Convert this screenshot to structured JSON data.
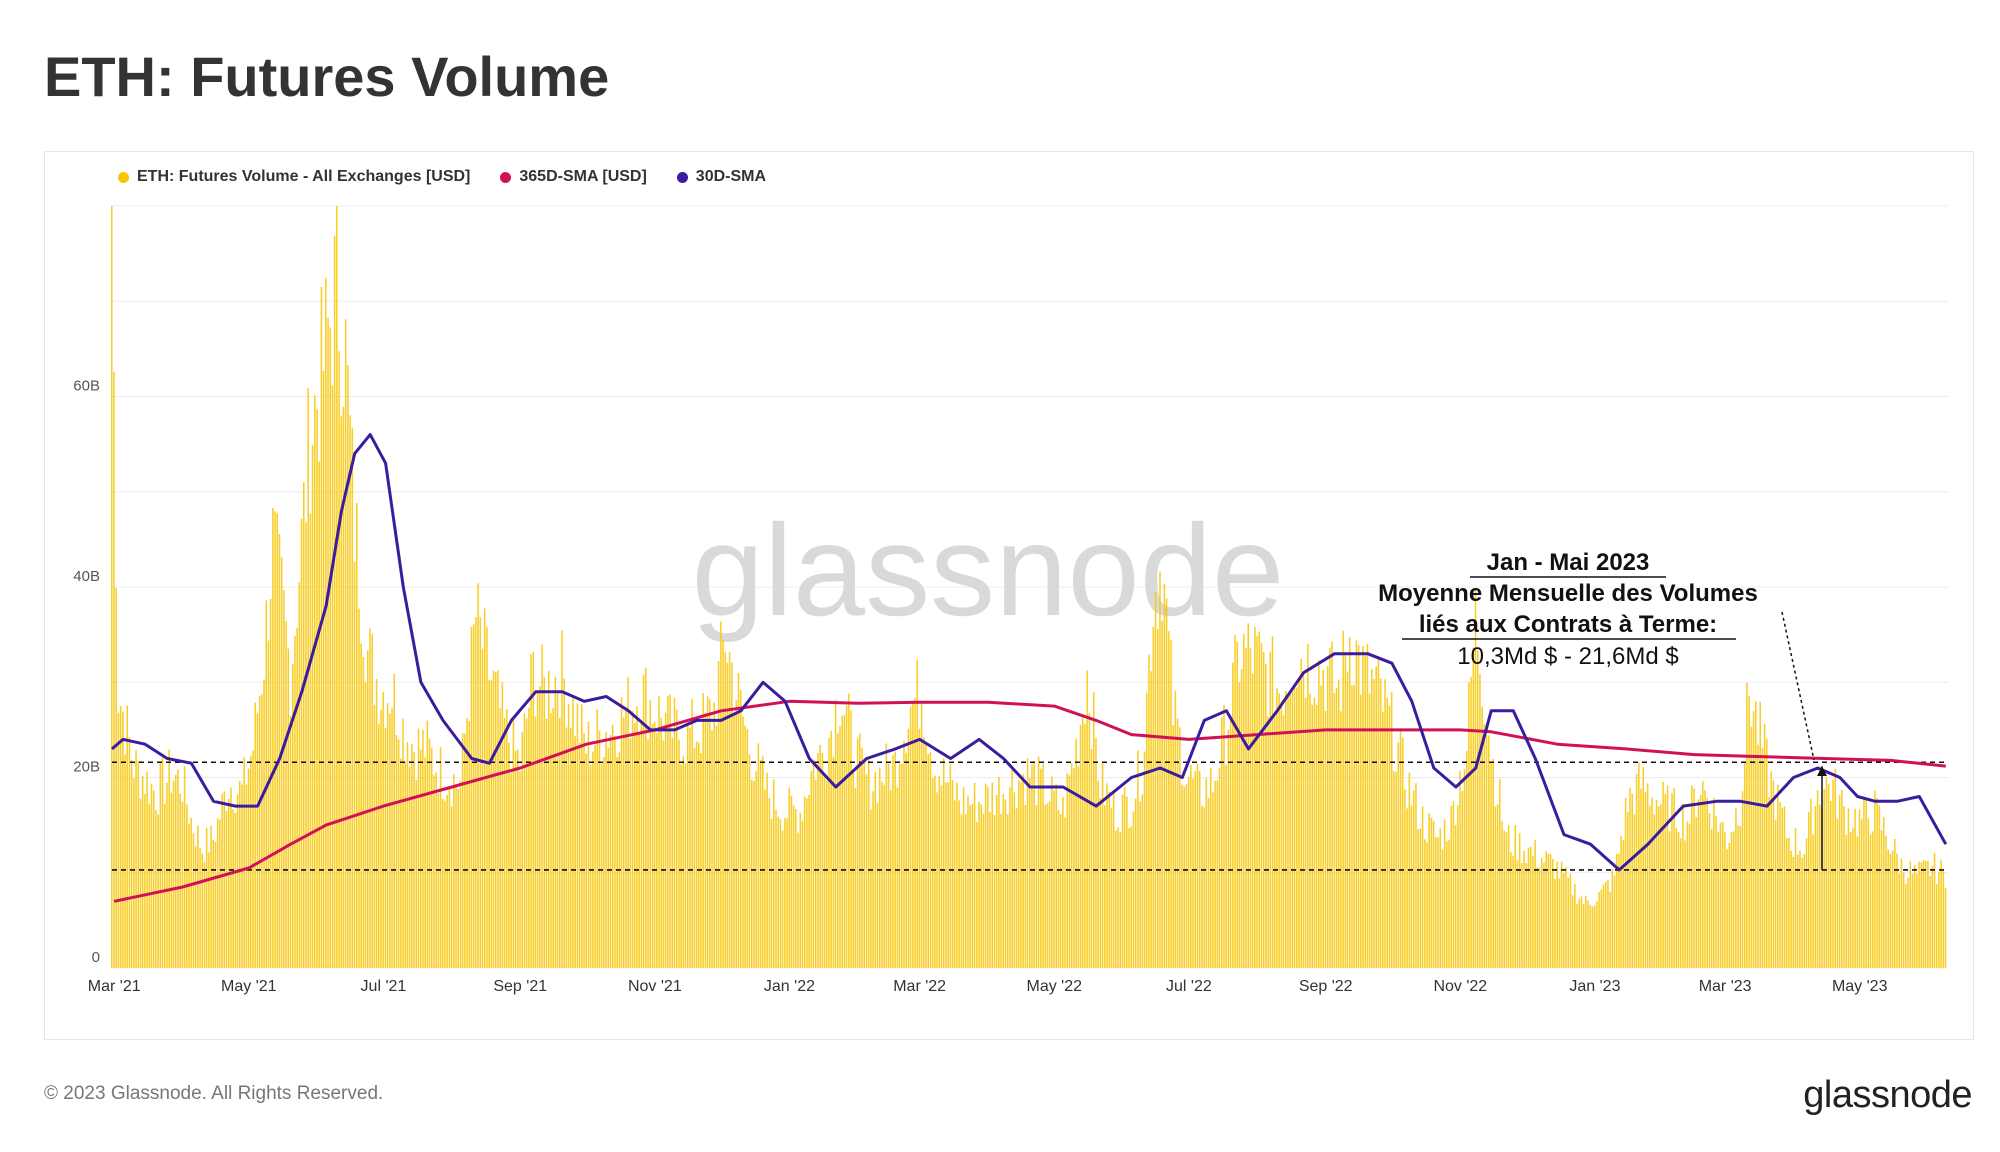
{
  "title": "ETH: Futures Volume",
  "legend": [
    {
      "label": "ETH: Futures Volume - All Exchanges [USD]",
      "color": "#f7c600"
    },
    {
      "label": "365D-SMA [USD]",
      "color": "#d0115a"
    },
    {
      "label": "30D-SMA",
      "color": "#3b1c9e"
    }
  ],
  "footer": {
    "copyright": "© 2023 Glassnode. All Rights Reserved.",
    "logo": "glassnode"
  },
  "watermark": "glassnode",
  "annotation": {
    "line1": "Jan - Mai 2023",
    "line2": "Moyenne Mensuelle des Volumes",
    "line3": "liés aux Contrats à Terme:",
    "line4": "10,3Md $ - 21,6Md $"
  },
  "chart_data": {
    "type": "bar",
    "x_range": [
      "2021-02-28",
      "2023-06-10"
    ],
    "ylim": [
      0,
      80
    ],
    "y_unit": "B",
    "yticks": [
      {
        "v": 0,
        "label": "0"
      },
      {
        "v": 20,
        "label": "20B"
      },
      {
        "v": 40,
        "label": "40B"
      },
      {
        "v": 60,
        "label": "60B"
      }
    ],
    "xticks": [
      {
        "date": "2021-03-01",
        "label": "Mar '21"
      },
      {
        "date": "2021-05-01",
        "label": "May '21"
      },
      {
        "date": "2021-07-01",
        "label": "Jul '21"
      },
      {
        "date": "2021-09-01",
        "label": "Sep '21"
      },
      {
        "date": "2021-11-01",
        "label": "Nov '21"
      },
      {
        "date": "2022-01-01",
        "label": "Jan '22"
      },
      {
        "date": "2022-03-01",
        "label": "Mar '22"
      },
      {
        "date": "2022-05-01",
        "label": "May '22"
      },
      {
        "date": "2022-07-01",
        "label": "Jul '22"
      },
      {
        "date": "2022-09-01",
        "label": "Sep '22"
      },
      {
        "date": "2022-11-01",
        "label": "Nov '22"
      },
      {
        "date": "2023-01-01",
        "label": "Jan '23"
      },
      {
        "date": "2023-03-01",
        "label": "Mar '23"
      },
      {
        "date": "2023-05-01",
        "label": "May '23"
      }
    ],
    "reference_lines": [
      21.6,
      10.3
    ],
    "series": [
      {
        "name": "ETH: Futures Volume - All Exchanges [USD]",
        "color": "#f7c600",
        "points": [
          [
            "2021-02-28",
            80
          ],
          [
            "2021-03-03",
            30
          ],
          [
            "2021-03-10",
            22
          ],
          [
            "2021-03-20",
            19
          ],
          [
            "2021-03-27",
            21
          ],
          [
            "2021-04-01",
            20
          ],
          [
            "2021-04-05",
            16
          ],
          [
            "2021-04-10",
            13
          ],
          [
            "2021-04-15",
            14
          ],
          [
            "2021-04-22",
            20
          ],
          [
            "2021-04-28",
            19
          ],
          [
            "2021-05-03",
            24
          ],
          [
            "2021-05-08",
            34
          ],
          [
            "2021-05-12",
            46
          ],
          [
            "2021-05-16",
            40
          ],
          [
            "2021-05-20",
            32
          ],
          [
            "2021-05-25",
            46
          ],
          [
            "2021-05-29",
            58
          ],
          [
            "2021-06-03",
            64
          ],
          [
            "2021-06-07",
            70
          ],
          [
            "2021-06-10",
            74
          ],
          [
            "2021-06-14",
            66
          ],
          [
            "2021-06-18",
            48
          ],
          [
            "2021-06-24",
            34
          ],
          [
            "2021-06-30",
            30
          ],
          [
            "2021-07-05",
            30
          ],
          [
            "2021-07-10",
            26
          ],
          [
            "2021-07-15",
            24
          ],
          [
            "2021-07-20",
            24
          ],
          [
            "2021-07-28",
            21
          ],
          [
            "2021-08-05",
            20
          ],
          [
            "2021-08-12",
            38
          ],
          [
            "2021-08-18",
            32
          ],
          [
            "2021-08-25",
            26
          ],
          [
            "2021-09-01",
            22
          ],
          [
            "2021-09-07",
            32
          ],
          [
            "2021-09-12",
            30
          ],
          [
            "2021-09-20",
            32
          ],
          [
            "2021-09-25",
            28
          ],
          [
            "2021-10-01",
            24
          ],
          [
            "2021-10-06",
            25
          ],
          [
            "2021-10-12",
            26
          ],
          [
            "2021-10-20",
            28
          ],
          [
            "2021-10-26",
            30
          ],
          [
            "2021-11-01",
            28
          ],
          [
            "2021-11-08",
            26
          ],
          [
            "2021-11-15",
            25
          ],
          [
            "2021-11-22",
            26
          ],
          [
            "2021-11-28",
            28
          ],
          [
            "2021-12-03",
            36
          ],
          [
            "2021-12-08",
            30
          ],
          [
            "2021-12-14",
            24
          ],
          [
            "2021-12-22",
            19
          ],
          [
            "2021-12-30",
            17
          ],
          [
            "2022-01-06",
            17
          ],
          [
            "2022-01-12",
            22
          ],
          [
            "2022-01-18",
            24
          ],
          [
            "2022-01-24",
            30
          ],
          [
            "2022-01-31",
            23
          ],
          [
            "2022-02-06",
            20
          ],
          [
            "2022-02-12",
            21
          ],
          [
            "2022-02-18",
            22
          ],
          [
            "2022-02-24",
            28
          ],
          [
            "2022-03-02",
            30
          ],
          [
            "2022-03-08",
            22
          ],
          [
            "2022-03-14",
            20
          ],
          [
            "2022-03-20",
            18
          ],
          [
            "2022-03-28",
            18
          ],
          [
            "2022-04-05",
            19
          ],
          [
            "2022-04-12",
            20
          ],
          [
            "2022-04-20",
            21
          ],
          [
            "2022-04-28",
            19
          ],
          [
            "2022-05-05",
            17
          ],
          [
            "2022-05-12",
            25
          ],
          [
            "2022-05-16",
            32
          ],
          [
            "2022-05-22",
            20
          ],
          [
            "2022-05-29",
            17
          ],
          [
            "2022-06-05",
            18
          ],
          [
            "2022-06-10",
            22
          ],
          [
            "2022-06-15",
            40
          ],
          [
            "2022-06-19",
            44
          ],
          [
            "2022-06-24",
            28
          ],
          [
            "2022-06-30",
            21
          ],
          [
            "2022-07-06",
            19
          ],
          [
            "2022-07-12",
            20
          ],
          [
            "2022-07-18",
            26
          ],
          [
            "2022-07-24",
            34
          ],
          [
            "2022-07-30",
            34
          ],
          [
            "2022-08-05",
            32
          ],
          [
            "2022-08-12",
            30
          ],
          [
            "2022-08-18",
            34
          ],
          [
            "2022-08-25",
            33
          ],
          [
            "2022-09-01",
            32
          ],
          [
            "2022-09-07",
            30
          ],
          [
            "2022-09-12",
            36
          ],
          [
            "2022-09-18",
            32
          ],
          [
            "2022-09-25",
            30
          ],
          [
            "2022-10-01",
            26
          ],
          [
            "2022-10-08",
            20
          ],
          [
            "2022-10-15",
            16
          ],
          [
            "2022-10-22",
            14
          ],
          [
            "2022-10-28",
            16
          ],
          [
            "2022-11-04",
            24
          ],
          [
            "2022-11-08",
            38
          ],
          [
            "2022-11-12",
            30
          ],
          [
            "2022-11-16",
            22
          ],
          [
            "2022-11-22",
            14
          ],
          [
            "2022-11-30",
            13
          ],
          [
            "2022-12-07",
            12
          ],
          [
            "2022-12-14",
            11
          ],
          [
            "2022-12-21",
            9
          ],
          [
            "2022-12-28",
            7
          ],
          [
            "2023-01-04",
            8
          ],
          [
            "2023-01-10",
            10
          ],
          [
            "2023-01-16",
            18
          ],
          [
            "2023-01-22",
            20
          ],
          [
            "2023-01-30",
            18
          ],
          [
            "2023-02-06",
            17
          ],
          [
            "2023-02-12",
            16
          ],
          [
            "2023-02-18",
            20
          ],
          [
            "2023-02-24",
            17
          ],
          [
            "2023-03-02",
            14
          ],
          [
            "2023-03-08",
            18
          ],
          [
            "2023-03-12",
            30
          ],
          [
            "2023-03-16",
            26
          ],
          [
            "2023-03-22",
            20
          ],
          [
            "2023-03-30",
            14
          ],
          [
            "2023-04-06",
            13
          ],
          [
            "2023-04-12",
            19
          ],
          [
            "2023-04-18",
            20
          ],
          [
            "2023-04-24",
            17
          ],
          [
            "2023-05-01",
            16
          ],
          [
            "2023-05-08",
            17
          ],
          [
            "2023-05-14",
            14
          ],
          [
            "2023-05-20",
            11
          ],
          [
            "2023-05-27",
            10
          ],
          [
            "2023-06-03",
            11
          ],
          [
            "2023-06-09",
            10
          ]
        ]
      },
      {
        "name": "365D-SMA [USD]",
        "color": "#d0115a",
        "points": [
          [
            "2021-03-01",
            7
          ],
          [
            "2021-04-01",
            8.5
          ],
          [
            "2021-05-01",
            10.5
          ],
          [
            "2021-05-20",
            13
          ],
          [
            "2021-06-05",
            15
          ],
          [
            "2021-07-01",
            17
          ],
          [
            "2021-08-01",
            19
          ],
          [
            "2021-09-01",
            21
          ],
          [
            "2021-10-01",
            23.5
          ],
          [
            "2021-11-01",
            25
          ],
          [
            "2021-12-01",
            27
          ],
          [
            "2022-01-01",
            28
          ],
          [
            "2022-02-01",
            27.8
          ],
          [
            "2022-03-01",
            27.9
          ],
          [
            "2022-04-01",
            27.9
          ],
          [
            "2022-05-01",
            27.5
          ],
          [
            "2022-05-20",
            26
          ],
          [
            "2022-06-05",
            24.5
          ],
          [
            "2022-07-01",
            24
          ],
          [
            "2022-08-01",
            24.5
          ],
          [
            "2022-09-01",
            25
          ],
          [
            "2022-10-01",
            25
          ],
          [
            "2022-11-01",
            25
          ],
          [
            "2022-11-15",
            24.8
          ],
          [
            "2022-12-15",
            23.5
          ],
          [
            "2023-01-15",
            23
          ],
          [
            "2023-02-15",
            22.4
          ],
          [
            "2023-03-15",
            22.2
          ],
          [
            "2023-04-15",
            22
          ],
          [
            "2023-05-15",
            21.8
          ],
          [
            "2023-06-09",
            21.2
          ]
        ]
      },
      {
        "name": "30D-SMA",
        "color": "#3b1c9e",
        "points": [
          [
            "2021-02-28",
            23
          ],
          [
            "2021-03-05",
            24
          ],
          [
            "2021-03-15",
            23.5
          ],
          [
            "2021-03-25",
            22
          ],
          [
            "2021-04-05",
            21.5
          ],
          [
            "2021-04-15",
            17.5
          ],
          [
            "2021-04-25",
            17
          ],
          [
            "2021-05-05",
            17
          ],
          [
            "2021-05-15",
            22
          ],
          [
            "2021-05-25",
            29
          ],
          [
            "2021-06-05",
            38
          ],
          [
            "2021-06-12",
            48
          ],
          [
            "2021-06-18",
            54
          ],
          [
            "2021-06-25",
            56
          ],
          [
            "2021-07-02",
            53
          ],
          [
            "2021-07-10",
            40
          ],
          [
            "2021-07-18",
            30
          ],
          [
            "2021-07-28",
            26
          ],
          [
            "2021-08-10",
            22
          ],
          [
            "2021-08-18",
            21.5
          ],
          [
            "2021-08-28",
            26
          ],
          [
            "2021-09-08",
            29
          ],
          [
            "2021-09-20",
            29
          ],
          [
            "2021-09-30",
            28
          ],
          [
            "2021-10-10",
            28.5
          ],
          [
            "2021-10-20",
            27
          ],
          [
            "2021-10-30",
            25
          ],
          [
            "2021-11-10",
            25
          ],
          [
            "2021-11-20",
            26
          ],
          [
            "2021-12-01",
            26
          ],
          [
            "2021-12-10",
            27
          ],
          [
            "2021-12-20",
            30
          ],
          [
            "2021-12-30",
            28
          ],
          [
            "2022-01-10",
            22
          ],
          [
            "2022-01-22",
            19
          ],
          [
            "2022-02-05",
            22
          ],
          [
            "2022-02-18",
            23
          ],
          [
            "2022-03-01",
            24
          ],
          [
            "2022-03-15",
            22
          ],
          [
            "2022-03-28",
            24
          ],
          [
            "2022-04-08",
            22
          ],
          [
            "2022-04-20",
            19
          ],
          [
            "2022-05-05",
            19
          ],
          [
            "2022-05-20",
            17
          ],
          [
            "2022-06-05",
            20
          ],
          [
            "2022-06-18",
            21
          ],
          [
            "2022-06-28",
            20
          ],
          [
            "2022-07-08",
            26
          ],
          [
            "2022-07-18",
            27
          ],
          [
            "2022-07-28",
            23
          ],
          [
            "2022-08-10",
            27
          ],
          [
            "2022-08-22",
            31
          ],
          [
            "2022-09-05",
            33
          ],
          [
            "2022-09-20",
            33
          ],
          [
            "2022-10-01",
            32
          ],
          [
            "2022-10-10",
            28
          ],
          [
            "2022-10-20",
            21
          ],
          [
            "2022-10-30",
            19
          ],
          [
            "2022-11-08",
            21
          ],
          [
            "2022-11-15",
            27
          ],
          [
            "2022-11-25",
            27
          ],
          [
            "2022-12-05",
            22
          ],
          [
            "2022-12-18",
            14
          ],
          [
            "2022-12-30",
            13
          ],
          [
            "2023-01-12",
            10.3
          ],
          [
            "2023-01-25",
            13
          ],
          [
            "2023-02-10",
            17
          ],
          [
            "2023-02-25",
            17.5
          ],
          [
            "2023-03-08",
            17.5
          ],
          [
            "2023-03-20",
            17
          ],
          [
            "2023-04-01",
            20
          ],
          [
            "2023-04-12",
            21
          ],
          [
            "2023-04-22",
            20
          ],
          [
            "2023-04-30",
            18
          ],
          [
            "2023-05-08",
            17.5
          ],
          [
            "2023-05-18",
            17.5
          ],
          [
            "2023-05-28",
            18
          ],
          [
            "2023-06-09",
            13
          ]
        ]
      }
    ]
  }
}
